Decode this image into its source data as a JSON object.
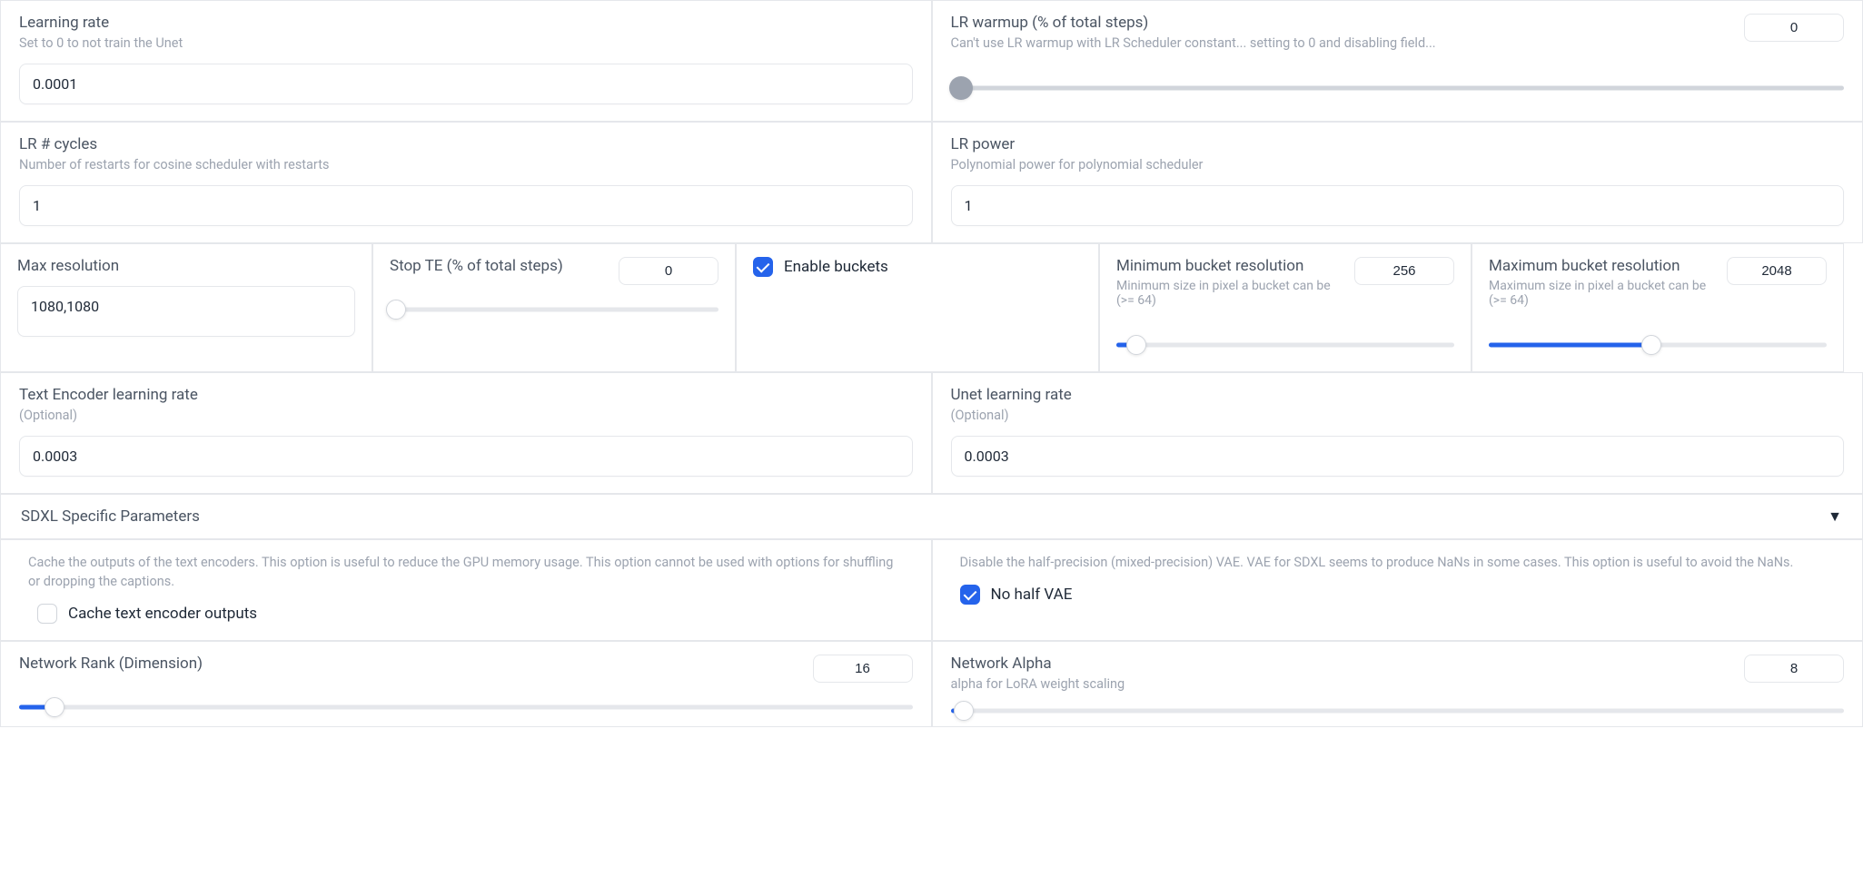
{
  "learning_rate": {
    "label": "Learning rate",
    "sub": "Set to 0 to not train the Unet",
    "value": "0.0001"
  },
  "lr_warmup": {
    "label": "LR warmup (% of total steps)",
    "sub": "Can't use LR warmup with LR Scheduler constant... setting to 0 and disabling field...",
    "value": "0",
    "slider_pct": 1.2,
    "track_color": "#9ca3af"
  },
  "lr_cycles": {
    "label": "LR # cycles",
    "sub": "Number of restarts for cosine scheduler with restarts",
    "value": "1"
  },
  "lr_power": {
    "label": "LR power",
    "sub": "Polynomial power for polynomial scheduler",
    "value": "1"
  },
  "max_res": {
    "label": "Max resolution",
    "value": "1080,1080"
  },
  "stop_te": {
    "label": "Stop TE (% of total steps)",
    "value": "0",
    "slider_pct": 2
  },
  "enable_buckets": {
    "label": "Enable buckets",
    "checked": true
  },
  "min_bucket": {
    "label": "Minimum bucket resolution",
    "sub": "Minimum size in pixel a bucket can be (>= 64)",
    "value": "256",
    "slider_pct": 6
  },
  "max_bucket": {
    "label": "Maximum bucket resolution",
    "sub": "Maximum size in pixel a bucket can be (>= 64)",
    "value": "2048",
    "slider_pct": 48
  },
  "te_lr": {
    "label": "Text Encoder learning rate",
    "sub": "(Optional)",
    "value": "0.0003"
  },
  "unet_lr": {
    "label": "Unet learning rate",
    "sub": "(Optional)",
    "value": "0.0003"
  },
  "sdxl_header": "SDXL Specific Parameters",
  "cache_te": {
    "note": "Cache the outputs of the text encoders. This option is useful to reduce the GPU memory usage. This option cannot be used with options for shuffling or dropping the captions.",
    "label": "Cache text encoder outputs",
    "checked": false
  },
  "no_half_vae": {
    "note": "Disable the half-precision (mixed-precision) VAE. VAE for SDXL seems to produce NaNs in some cases. This option is useful to avoid the NaNs.",
    "label": "No half VAE",
    "checked": true
  },
  "net_rank": {
    "label": "Network Rank (Dimension)",
    "value": "16",
    "slider_pct": 4
  },
  "net_alpha": {
    "label": "Network Alpha",
    "sub": "alpha for LoRA weight scaling",
    "value": "8",
    "slider_pct": 1.5
  },
  "colors": {
    "accent": "#2563eb",
    "text_secondary": "#9ca3af",
    "border": "#e5e7eb"
  }
}
